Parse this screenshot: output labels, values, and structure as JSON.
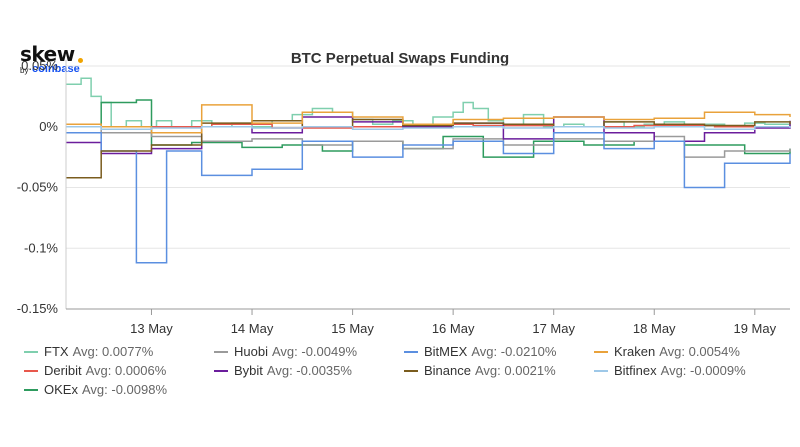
{
  "logo": {
    "word": "skew",
    "by": "by",
    "brand": "coinbase"
  },
  "chart_data": {
    "type": "line",
    "title": "BTC Perpetual Swaps Funding",
    "xlabel": "",
    "ylabel": "",
    "x_ticks": [
      "13 May",
      "14 May",
      "15 May",
      "16 May",
      "17 May",
      "18 May",
      "19 May"
    ],
    "y_ticks": [
      "0.05%",
      "0%",
      "-0.05%",
      "-0.1%",
      "-0.15%"
    ],
    "ylim": [
      -0.15,
      0.05
    ],
    "x_unit": "day of May",
    "xlim": [
      12.15,
      19.35
    ],
    "legend_position": "bottom",
    "series": [
      {
        "name": "FTX",
        "avg_label": "Avg: 0.0077%",
        "color": "#7fcfae",
        "points": [
          [
            12.15,
            0.035
          ],
          [
            12.3,
            0.04
          ],
          [
            12.4,
            0.025
          ],
          [
            12.5,
            0.02
          ],
          [
            12.6,
            0.0
          ],
          [
            12.75,
            0.005
          ],
          [
            12.9,
            0.0
          ],
          [
            13.05,
            0.005
          ],
          [
            13.2,
            0.0
          ],
          [
            13.4,
            0.005
          ],
          [
            13.6,
            0.0
          ],
          [
            13.8,
            0.003
          ],
          [
            14.0,
            0.0
          ],
          [
            14.2,
            0.005
          ],
          [
            14.4,
            0.01
          ],
          [
            14.6,
            0.015
          ],
          [
            14.8,
            0.012
          ],
          [
            15.0,
            0.006
          ],
          [
            15.2,
            0.002
          ],
          [
            15.4,
            0.005
          ],
          [
            15.6,
            0.002
          ],
          [
            15.8,
            0.008
          ],
          [
            16.0,
            0.012
          ],
          [
            16.1,
            0.02
          ],
          [
            16.2,
            0.015
          ],
          [
            16.35,
            0.005
          ],
          [
            16.5,
            0.002
          ],
          [
            16.7,
            0.01
          ],
          [
            16.9,
            0.0
          ],
          [
            17.1,
            0.002
          ],
          [
            17.3,
            0.0
          ],
          [
            17.5,
            0.004
          ],
          [
            17.7,
            0.0
          ],
          [
            17.9,
            0.002
          ],
          [
            18.1,
            0.004
          ],
          [
            18.3,
            0.0
          ],
          [
            18.5,
            0.002
          ],
          [
            18.7,
            0.0
          ],
          [
            18.9,
            0.003
          ],
          [
            19.1,
            0.002
          ],
          [
            19.35,
            0.001
          ]
        ]
      },
      {
        "name": "Deribit",
        "avg_label": "Avg: 0.0006%",
        "color": "#e8584c",
        "points": [
          [
            12.15,
            0.002
          ],
          [
            12.5,
            -0.002
          ],
          [
            13.0,
            0.0
          ],
          [
            13.6,
            0.002
          ],
          [
            14.2,
            -0.001
          ],
          [
            15.0,
            0.0
          ],
          [
            15.6,
            0.002
          ],
          [
            16.2,
            0.001
          ],
          [
            17.0,
            0.0
          ],
          [
            17.8,
            0.001
          ],
          [
            18.6,
            0.0
          ],
          [
            19.35,
            0.001
          ]
        ]
      },
      {
        "name": "OKEx",
        "avg_label": "Avg: -0.0098%",
        "color": "#2e9b5e",
        "points": [
          [
            12.15,
            0.0
          ],
          [
            12.5,
            0.02
          ],
          [
            12.85,
            0.022
          ],
          [
            13.0,
            -0.015
          ],
          [
            13.4,
            -0.013
          ],
          [
            13.9,
            -0.017
          ],
          [
            14.3,
            -0.015
          ],
          [
            14.7,
            -0.02
          ],
          [
            15.0,
            -0.012
          ],
          [
            15.5,
            -0.018
          ],
          [
            15.9,
            -0.008
          ],
          [
            16.3,
            -0.025
          ],
          [
            16.8,
            -0.012
          ],
          [
            17.3,
            -0.015
          ],
          [
            17.8,
            -0.012
          ],
          [
            18.3,
            -0.015
          ],
          [
            18.9,
            -0.022
          ],
          [
            19.35,
            -0.018
          ]
        ]
      },
      {
        "name": "Huobi",
        "avg_label": "Avg: -0.0049%",
        "color": "#9a9a9a",
        "points": [
          [
            12.15,
            0.0
          ],
          [
            12.5,
            -0.005
          ],
          [
            13.0,
            -0.008
          ],
          [
            13.5,
            -0.012
          ],
          [
            14.0,
            -0.01
          ],
          [
            14.5,
            -0.015
          ],
          [
            15.0,
            -0.012
          ],
          [
            15.5,
            -0.018
          ],
          [
            16.0,
            -0.01
          ],
          [
            16.5,
            -0.015
          ],
          [
            17.0,
            -0.01
          ],
          [
            17.5,
            -0.012
          ],
          [
            18.0,
            -0.008
          ],
          [
            18.3,
            -0.025
          ],
          [
            18.7,
            -0.02
          ],
          [
            19.35,
            -0.018
          ]
        ]
      },
      {
        "name": "Bybit",
        "avg_label": "Avg: -0.0035%",
        "color": "#6b1d9c",
        "points": [
          [
            12.15,
            -0.013
          ],
          [
            12.5,
            -0.022
          ],
          [
            13.0,
            -0.018
          ],
          [
            13.5,
            0.0
          ],
          [
            14.0,
            -0.005
          ],
          [
            14.5,
            0.008
          ],
          [
            15.0,
            0.004
          ],
          [
            15.5,
            0.0
          ],
          [
            16.0,
            0.003
          ],
          [
            16.5,
            -0.01
          ],
          [
            17.0,
            0.008
          ],
          [
            17.5,
            -0.005
          ],
          [
            18.0,
            -0.012
          ],
          [
            18.5,
            -0.005
          ],
          [
            19.0,
            -0.001
          ],
          [
            19.35,
            0.005
          ]
        ]
      },
      {
        "name": "BitMEX",
        "avg_label": "Avg: -0.0210%",
        "color": "#5b8fe0",
        "points": [
          [
            12.15,
            -0.005
          ],
          [
            12.5,
            -0.02
          ],
          [
            12.85,
            -0.112
          ],
          [
            13.15,
            -0.02
          ],
          [
            13.5,
            -0.04
          ],
          [
            14.0,
            -0.035
          ],
          [
            14.5,
            -0.012
          ],
          [
            15.0,
            -0.025
          ],
          [
            15.5,
            -0.015
          ],
          [
            16.0,
            -0.012
          ],
          [
            16.5,
            -0.022
          ],
          [
            17.0,
            -0.005
          ],
          [
            17.5,
            -0.018
          ],
          [
            18.0,
            -0.012
          ],
          [
            18.3,
            -0.05
          ],
          [
            18.7,
            -0.03
          ],
          [
            19.35,
            -0.022
          ]
        ]
      },
      {
        "name": "Binance",
        "avg_label": "Avg: 0.0021%",
        "color": "#7a5c1e",
        "points": [
          [
            12.15,
            -0.042
          ],
          [
            12.5,
            -0.02
          ],
          [
            13.0,
            -0.015
          ],
          [
            13.5,
            0.003
          ],
          [
            14.0,
            0.005
          ],
          [
            14.5,
            0.0
          ],
          [
            15.0,
            0.006
          ],
          [
            15.5,
            0.001
          ],
          [
            16.0,
            0.003
          ],
          [
            16.5,
            0.002
          ],
          [
            17.0,
            0.0
          ],
          [
            17.5,
            0.004
          ],
          [
            18.0,
            0.002
          ],
          [
            18.5,
            0.001
          ],
          [
            19.0,
            0.004
          ],
          [
            19.35,
            0.002
          ]
        ]
      },
      {
        "name": "Kraken",
        "avg_label": "Avg: 0.0054%",
        "color": "#e9a23b",
        "points": [
          [
            12.15,
            0.002
          ],
          [
            12.5,
            0.0
          ],
          [
            13.0,
            -0.005
          ],
          [
            13.5,
            0.018
          ],
          [
            14.0,
            0.003
          ],
          [
            14.5,
            0.012
          ],
          [
            15.0,
            0.008
          ],
          [
            15.5,
            0.002
          ],
          [
            16.0,
            0.006
          ],
          [
            16.5,
            0.007
          ],
          [
            17.0,
            0.008
          ],
          [
            17.5,
            0.006
          ],
          [
            18.0,
            0.007
          ],
          [
            18.5,
            0.012
          ],
          [
            19.0,
            0.01
          ],
          [
            19.35,
            0.008
          ]
        ]
      },
      {
        "name": "Bitfinex",
        "avg_label": "Avg: -0.0009%",
        "color": "#9ec8e8",
        "points": [
          [
            12.15,
            0.0
          ],
          [
            12.5,
            -0.002
          ],
          [
            13.0,
            -0.001
          ],
          [
            13.5,
            0.0
          ],
          [
            14.0,
            -0.001
          ],
          [
            14.5,
            0.0
          ],
          [
            15.0,
            -0.002
          ],
          [
            15.5,
            -0.001
          ],
          [
            16.0,
            0.0
          ],
          [
            16.5,
            -0.001
          ],
          [
            17.0,
            0.0
          ],
          [
            17.5,
            -0.001
          ],
          [
            18.0,
            0.0
          ],
          [
            18.5,
            -0.002
          ],
          [
            19.0,
            0.0
          ],
          [
            19.35,
            -0.001
          ]
        ]
      }
    ]
  }
}
